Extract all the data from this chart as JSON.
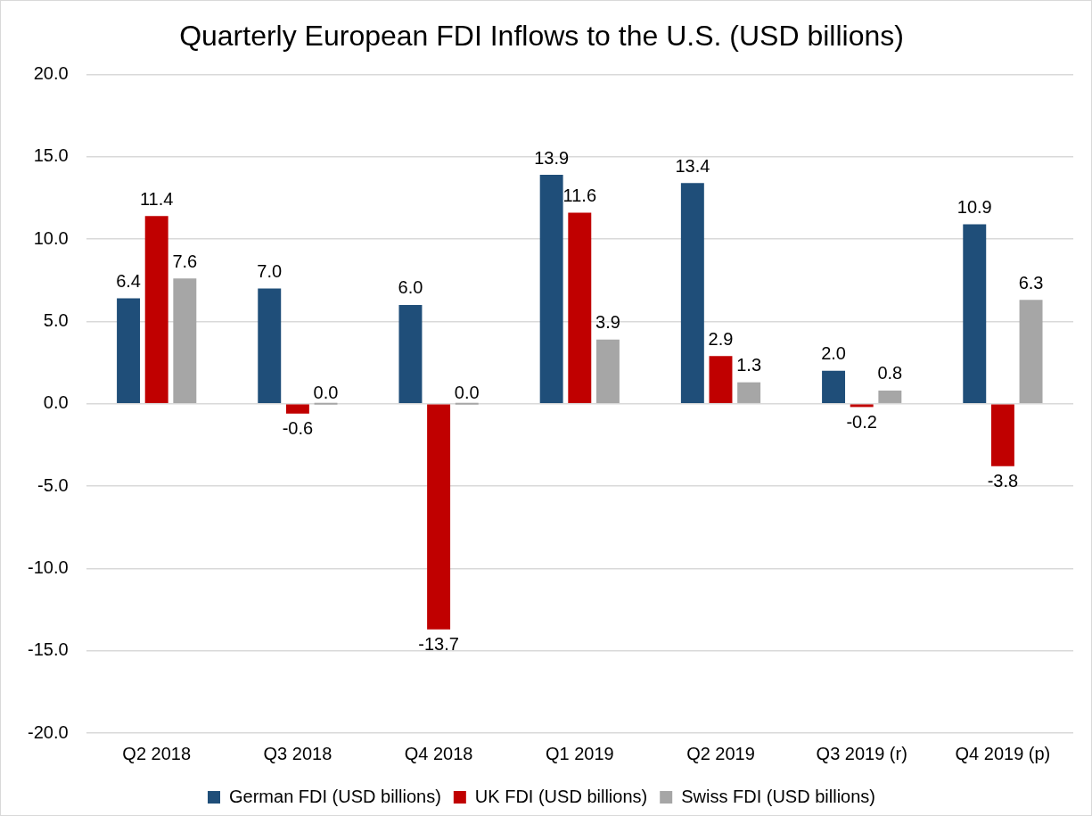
{
  "chart_data": {
    "type": "bar",
    "title": "Quarterly European FDI Inflows to the U.S. (USD billions)",
    "categories": [
      "Q2 2018",
      "Q3 2018",
      "Q4 2018",
      "Q1 2019",
      "Q2 2019",
      "Q3 2019 (r)",
      "Q4 2019 (p)"
    ],
    "series": [
      {
        "name": "German FDI (USD billions)",
        "color": "#1f4e79",
        "values": [
          6.4,
          7.0,
          6.0,
          13.9,
          13.4,
          2.0,
          10.9
        ],
        "value_labels": [
          "6.4",
          "7.0",
          "6.0",
          "13.9",
          "13.4",
          "2.0",
          "10.9"
        ]
      },
      {
        "name": "UK FDI (USD billions)",
        "color": "#c00000",
        "values": [
          11.4,
          -0.6,
          -13.7,
          11.6,
          2.9,
          -0.2,
          -3.8
        ],
        "value_labels": [
          "11.4",
          "-0.6",
          "-13.7",
          "11.6",
          "2.9",
          "-0.2",
          "-3.8"
        ]
      },
      {
        "name": "Swiss FDI (USD billions)",
        "color": "#a6a6a6",
        "values": [
          7.6,
          0,
          0,
          3.9,
          1.3,
          0.8,
          6.3
        ],
        "value_labels": [
          "7.6",
          "0.0",
          "0.0",
          "3.9",
          "1.3",
          "0.8",
          "6.3"
        ]
      }
    ],
    "ylim": [
      -20,
      20
    ],
    "yticks": [
      {
        "value": -20,
        "label": "-20.0"
      },
      {
        "value": -15,
        "label": "-15.0"
      },
      {
        "value": -10,
        "label": "-10.0"
      },
      {
        "value": -5,
        "label": "-5.0"
      },
      {
        "value": 0,
        "label": "0.0"
      },
      {
        "value": 5,
        "label": "5.0"
      },
      {
        "value": 10,
        "label": "10.0"
      },
      {
        "value": 15,
        "label": "15.0"
      },
      {
        "value": 20,
        "label": "20.0"
      }
    ],
    "grid": "y",
    "legend": "bottom"
  }
}
